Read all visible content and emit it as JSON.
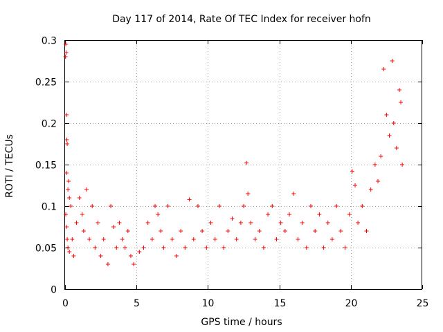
{
  "chart_data": {
    "type": "scatter",
    "title": "Day 117 of 2014, Rate Of TEC Index for receiver hofn",
    "xlabel": "GPS time / hours",
    "ylabel": "ROTI / TECUs",
    "xlim": [
      0,
      25
    ],
    "ylim": [
      0,
      0.3
    ],
    "xticks": [
      0,
      5,
      10,
      15,
      20,
      25
    ],
    "xtick_labels": [
      "0",
      "5",
      "10",
      "15",
      "20",
      "25"
    ],
    "yticks": [
      0,
      0.05,
      0.1,
      0.15,
      0.2,
      0.25,
      0.3
    ],
    "ytick_labels": [
      "0",
      "0.05",
      "0.1",
      "0.15",
      "0.2",
      "0.25",
      "0.3"
    ],
    "grid": true,
    "marker": "plus",
    "color": "#ff0000",
    "series": [
      {
        "name": "ROTI",
        "points": [
          [
            0.03,
            0.28
          ],
          [
            0.05,
            0.295
          ],
          [
            0.08,
            0.285
          ],
          [
            0.1,
            0.21
          ],
          [
            0.12,
            0.18
          ],
          [
            0.15,
            0.175
          ],
          [
            0.1,
            0.14
          ],
          [
            0.2,
            0.12
          ],
          [
            0.25,
            0.13
          ],
          [
            0.3,
            0.11
          ],
          [
            0.05,
            0.09
          ],
          [
            0.1,
            0.075
          ],
          [
            0.15,
            0.06
          ],
          [
            0.2,
            0.05
          ],
          [
            0.3,
            0.045
          ],
          [
            0.4,
            0.1
          ],
          [
            0.5,
            0.06
          ],
          [
            0.6,
            0.04
          ],
          [
            0.8,
            0.08
          ],
          [
            1.0,
            0.11
          ],
          [
            1.2,
            0.09
          ],
          [
            1.3,
            0.07
          ],
          [
            1.5,
            0.12
          ],
          [
            1.7,
            0.06
          ],
          [
            1.9,
            0.1
          ],
          [
            2.1,
            0.05
          ],
          [
            2.3,
            0.08
          ],
          [
            2.5,
            0.04
          ],
          [
            2.7,
            0.06
          ],
          [
            3.0,
            0.03
          ],
          [
            3.2,
            0.1
          ],
          [
            3.4,
            0.075
          ],
          [
            3.6,
            0.05
          ],
          [
            3.8,
            0.08
          ],
          [
            4.0,
            0.06
          ],
          [
            4.2,
            0.05
          ],
          [
            4.4,
            0.07
          ],
          [
            4.6,
            0.04
          ],
          [
            4.8,
            0.03
          ],
          [
            5.2,
            0.045
          ],
          [
            5.5,
            0.05
          ],
          [
            5.8,
            0.08
          ],
          [
            6.1,
            0.06
          ],
          [
            6.3,
            0.1
          ],
          [
            6.5,
            0.09
          ],
          [
            6.7,
            0.07
          ],
          [
            6.9,
            0.05
          ],
          [
            7.2,
            0.1
          ],
          [
            7.5,
            0.06
          ],
          [
            7.8,
            0.04
          ],
          [
            8.1,
            0.07
          ],
          [
            8.4,
            0.05
          ],
          [
            8.7,
            0.108
          ],
          [
            9.0,
            0.06
          ],
          [
            9.3,
            0.1
          ],
          [
            9.6,
            0.07
          ],
          [
            9.9,
            0.05
          ],
          [
            10.2,
            0.08
          ],
          [
            10.5,
            0.06
          ],
          [
            10.8,
            0.1
          ],
          [
            11.1,
            0.05
          ],
          [
            11.4,
            0.07
          ],
          [
            11.7,
            0.085
          ],
          [
            12.0,
            0.06
          ],
          [
            12.3,
            0.08
          ],
          [
            12.5,
            0.1
          ],
          [
            12.7,
            0.152
          ],
          [
            12.8,
            0.115
          ],
          [
            13.0,
            0.08
          ],
          [
            13.3,
            0.06
          ],
          [
            13.6,
            0.07
          ],
          [
            13.9,
            0.05
          ],
          [
            14.2,
            0.09
          ],
          [
            14.5,
            0.1
          ],
          [
            14.8,
            0.06
          ],
          [
            15.1,
            0.08
          ],
          [
            15.4,
            0.07
          ],
          [
            15.7,
            0.09
          ],
          [
            16.0,
            0.115
          ],
          [
            16.3,
            0.06
          ],
          [
            16.6,
            0.08
          ],
          [
            16.9,
            0.05
          ],
          [
            17.2,
            0.1
          ],
          [
            17.5,
            0.07
          ],
          [
            17.8,
            0.09
          ],
          [
            18.1,
            0.05
          ],
          [
            18.4,
            0.08
          ],
          [
            18.7,
            0.06
          ],
          [
            19.0,
            0.1
          ],
          [
            19.3,
            0.07
          ],
          [
            19.6,
            0.05
          ],
          [
            19.9,
            0.09
          ],
          [
            20.1,
            0.142
          ],
          [
            20.3,
            0.125
          ],
          [
            20.5,
            0.08
          ],
          [
            20.8,
            0.1
          ],
          [
            21.1,
            0.07
          ],
          [
            21.4,
            0.12
          ],
          [
            21.7,
            0.15
          ],
          [
            21.9,
            0.13
          ],
          [
            22.1,
            0.16
          ],
          [
            22.3,
            0.265
          ],
          [
            22.5,
            0.21
          ],
          [
            22.7,
            0.185
          ],
          [
            22.9,
            0.275
          ],
          [
            23.0,
            0.2
          ],
          [
            23.2,
            0.17
          ],
          [
            23.4,
            0.24
          ],
          [
            23.5,
            0.225
          ],
          [
            23.6,
            0.15
          ]
        ]
      }
    ]
  }
}
